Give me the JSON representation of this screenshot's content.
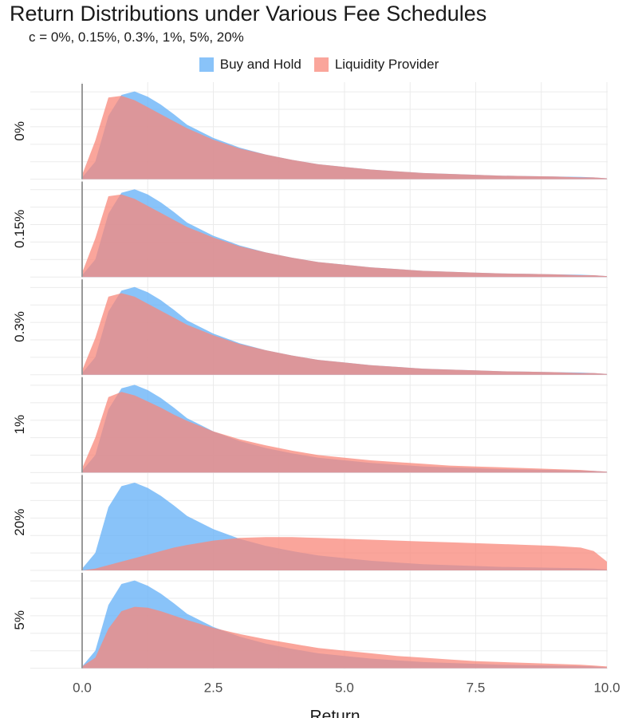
{
  "colors": {
    "buy_and_hold": "#6cb4f8",
    "liquidity_provider": "#f8877a",
    "background": "#ffffff",
    "grid": "#ebebeb",
    "zero_line": "#999999"
  },
  "chart_data": {
    "type": "area",
    "subtype": "ridgeline-density",
    "title": "Return Distributions under Various Fee Schedules",
    "subtitle": "c = 0%,  0.15%,  0.3%,  1%,  5%,  20%",
    "xlabel": "Return",
    "ylabel": "",
    "xlim": [
      0,
      10
    ],
    "x_ticks": [
      0,
      2.5,
      5,
      7.5,
      10
    ],
    "x_tick_labels": [
      "0.0",
      "2.5",
      "5.0",
      "7.5",
      "10.0"
    ],
    "ylim": [
      0,
      1
    ],
    "grid": true,
    "legend_position": "top",
    "legend": [
      "Buy and Hold",
      "Liquidity Provider"
    ],
    "vline_x": 0,
    "x": [
      0,
      0.25,
      0.5,
      0.75,
      1,
      1.25,
      1.5,
      1.75,
      2,
      2.5,
      3,
      3.5,
      4,
      4.5,
      5,
      5.5,
      6,
      6.5,
      7,
      7.5,
      8,
      8.5,
      9,
      9.5,
      9.75,
      10
    ],
    "panels": [
      {
        "label": "0%",
        "series": [
          {
            "name": "Buy and Hold",
            "values": [
              0.02,
              0.2,
              0.72,
              0.96,
              1.0,
              0.94,
              0.85,
              0.74,
              0.62,
              0.47,
              0.36,
              0.28,
              0.22,
              0.17,
              0.14,
              0.11,
              0.09,
              0.07,
              0.06,
              0.05,
              0.04,
              0.035,
              0.03,
              0.025,
              0.02,
              0.01
            ]
          },
          {
            "name": "Liquidity Provider",
            "values": [
              0.05,
              0.44,
              0.93,
              0.95,
              0.9,
              0.82,
              0.74,
              0.66,
              0.58,
              0.45,
              0.35,
              0.28,
              0.22,
              0.17,
              0.14,
              0.11,
              0.09,
              0.07,
              0.06,
              0.05,
              0.04,
              0.035,
              0.03,
              0.02,
              0.02,
              0.01
            ]
          }
        ]
      },
      {
        "label": "0.15%",
        "series": [
          {
            "name": "Buy and Hold",
            "values": [
              0.02,
              0.2,
              0.72,
              0.96,
              1.0,
              0.94,
              0.85,
              0.74,
              0.62,
              0.47,
              0.36,
              0.28,
              0.22,
              0.17,
              0.14,
              0.11,
              0.09,
              0.07,
              0.06,
              0.05,
              0.04,
              0.035,
              0.03,
              0.025,
              0.02,
              0.01
            ]
          },
          {
            "name": "Liquidity Provider",
            "values": [
              0.05,
              0.44,
              0.92,
              0.94,
              0.89,
              0.81,
              0.73,
              0.65,
              0.57,
              0.45,
              0.35,
              0.28,
              0.22,
              0.17,
              0.14,
              0.11,
              0.09,
              0.07,
              0.06,
              0.05,
              0.04,
              0.035,
              0.03,
              0.02,
              0.02,
              0.01
            ]
          }
        ]
      },
      {
        "label": "0.3%",
        "series": [
          {
            "name": "Buy and Hold",
            "values": [
              0.02,
              0.2,
              0.72,
              0.96,
              1.0,
              0.94,
              0.85,
              0.74,
              0.62,
              0.47,
              0.36,
              0.28,
              0.22,
              0.17,
              0.14,
              0.11,
              0.09,
              0.07,
              0.06,
              0.05,
              0.04,
              0.035,
              0.03,
              0.025,
              0.02,
              0.01
            ]
          },
          {
            "name": "Liquidity Provider",
            "values": [
              0.05,
              0.42,
              0.89,
              0.93,
              0.89,
              0.81,
              0.73,
              0.65,
              0.57,
              0.45,
              0.35,
              0.28,
              0.22,
              0.17,
              0.14,
              0.11,
              0.09,
              0.07,
              0.06,
              0.05,
              0.04,
              0.035,
              0.03,
              0.02,
              0.02,
              0.01
            ]
          }
        ]
      },
      {
        "label": "1%",
        "series": [
          {
            "name": "Buy and Hold",
            "values": [
              0.02,
              0.2,
              0.72,
              0.96,
              1.0,
              0.94,
              0.85,
              0.74,
              0.62,
              0.47,
              0.36,
              0.28,
              0.22,
              0.17,
              0.14,
              0.11,
              0.09,
              0.07,
              0.06,
              0.05,
              0.04,
              0.035,
              0.03,
              0.025,
              0.02,
              0.01
            ]
          },
          {
            "name": "Liquidity Provider",
            "values": [
              0.05,
              0.4,
              0.86,
              0.92,
              0.88,
              0.81,
              0.74,
              0.66,
              0.59,
              0.47,
              0.38,
              0.31,
              0.25,
              0.2,
              0.17,
              0.14,
              0.12,
              0.1,
              0.08,
              0.07,
              0.06,
              0.05,
              0.04,
              0.03,
              0.02,
              0.01
            ]
          }
        ]
      },
      {
        "label": "20%",
        "series": [
          {
            "name": "Buy and Hold",
            "values": [
              0.02,
              0.2,
              0.72,
              0.96,
              1.0,
              0.94,
              0.85,
              0.74,
              0.62,
              0.47,
              0.36,
              0.28,
              0.22,
              0.17,
              0.14,
              0.11,
              0.09,
              0.07,
              0.06,
              0.05,
              0.04,
              0.035,
              0.03,
              0.025,
              0.02,
              0.01
            ]
          },
          {
            "name": "Liquidity Provider",
            "values": [
              0.0,
              0.02,
              0.06,
              0.1,
              0.14,
              0.18,
              0.22,
              0.26,
              0.29,
              0.34,
              0.37,
              0.38,
              0.38,
              0.37,
              0.36,
              0.35,
              0.34,
              0.33,
              0.32,
              0.31,
              0.3,
              0.29,
              0.28,
              0.26,
              0.22,
              0.1
            ]
          }
        ]
      },
      {
        "label": "5%",
        "series": [
          {
            "name": "Buy and Hold",
            "values": [
              0.02,
              0.2,
              0.72,
              0.96,
              1.0,
              0.94,
              0.85,
              0.74,
              0.62,
              0.47,
              0.36,
              0.28,
              0.22,
              0.17,
              0.14,
              0.11,
              0.09,
              0.07,
              0.06,
              0.05,
              0.04,
              0.035,
              0.03,
              0.025,
              0.02,
              0.01
            ]
          },
          {
            "name": "Liquidity Provider",
            "values": [
              0.02,
              0.12,
              0.45,
              0.65,
              0.7,
              0.69,
              0.65,
              0.6,
              0.55,
              0.46,
              0.39,
              0.33,
              0.28,
              0.23,
              0.2,
              0.17,
              0.14,
              0.12,
              0.1,
              0.08,
              0.07,
              0.06,
              0.05,
              0.04,
              0.03,
              0.02
            ]
          }
        ]
      }
    ]
  }
}
